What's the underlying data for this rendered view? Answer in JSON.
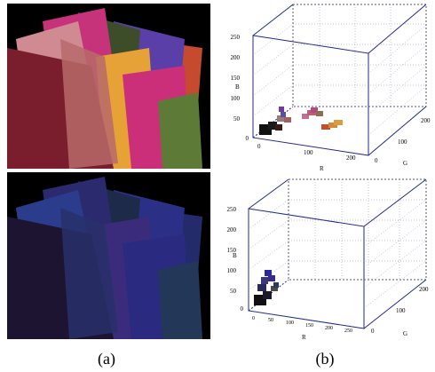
{
  "captions": {
    "left": "(a)",
    "right": "(b)"
  },
  "top_plot": {
    "b_ticks": [
      "250",
      "200",
      "150",
      "100",
      "50",
      "0"
    ],
    "r_ticks": [
      "0",
      "100",
      "200"
    ],
    "g_ticks": [
      "0",
      "100",
      "200"
    ],
    "labels": {
      "b": "B",
      "r": "R",
      "g": "G"
    }
  },
  "bottom_plot": {
    "b_ticks": [
      "250",
      "200",
      "150",
      "100",
      "50",
      "0"
    ],
    "r_ticks": [
      "0",
      "50",
      "100",
      "150",
      "200",
      "250"
    ],
    "g_ticks": [
      "0",
      "100",
      "200"
    ],
    "labels": {
      "b": "B",
      "r": "R",
      "g": "G"
    }
  },
  "colors": {
    "axis": "#1f2a8a",
    "grid": "#555577"
  }
}
